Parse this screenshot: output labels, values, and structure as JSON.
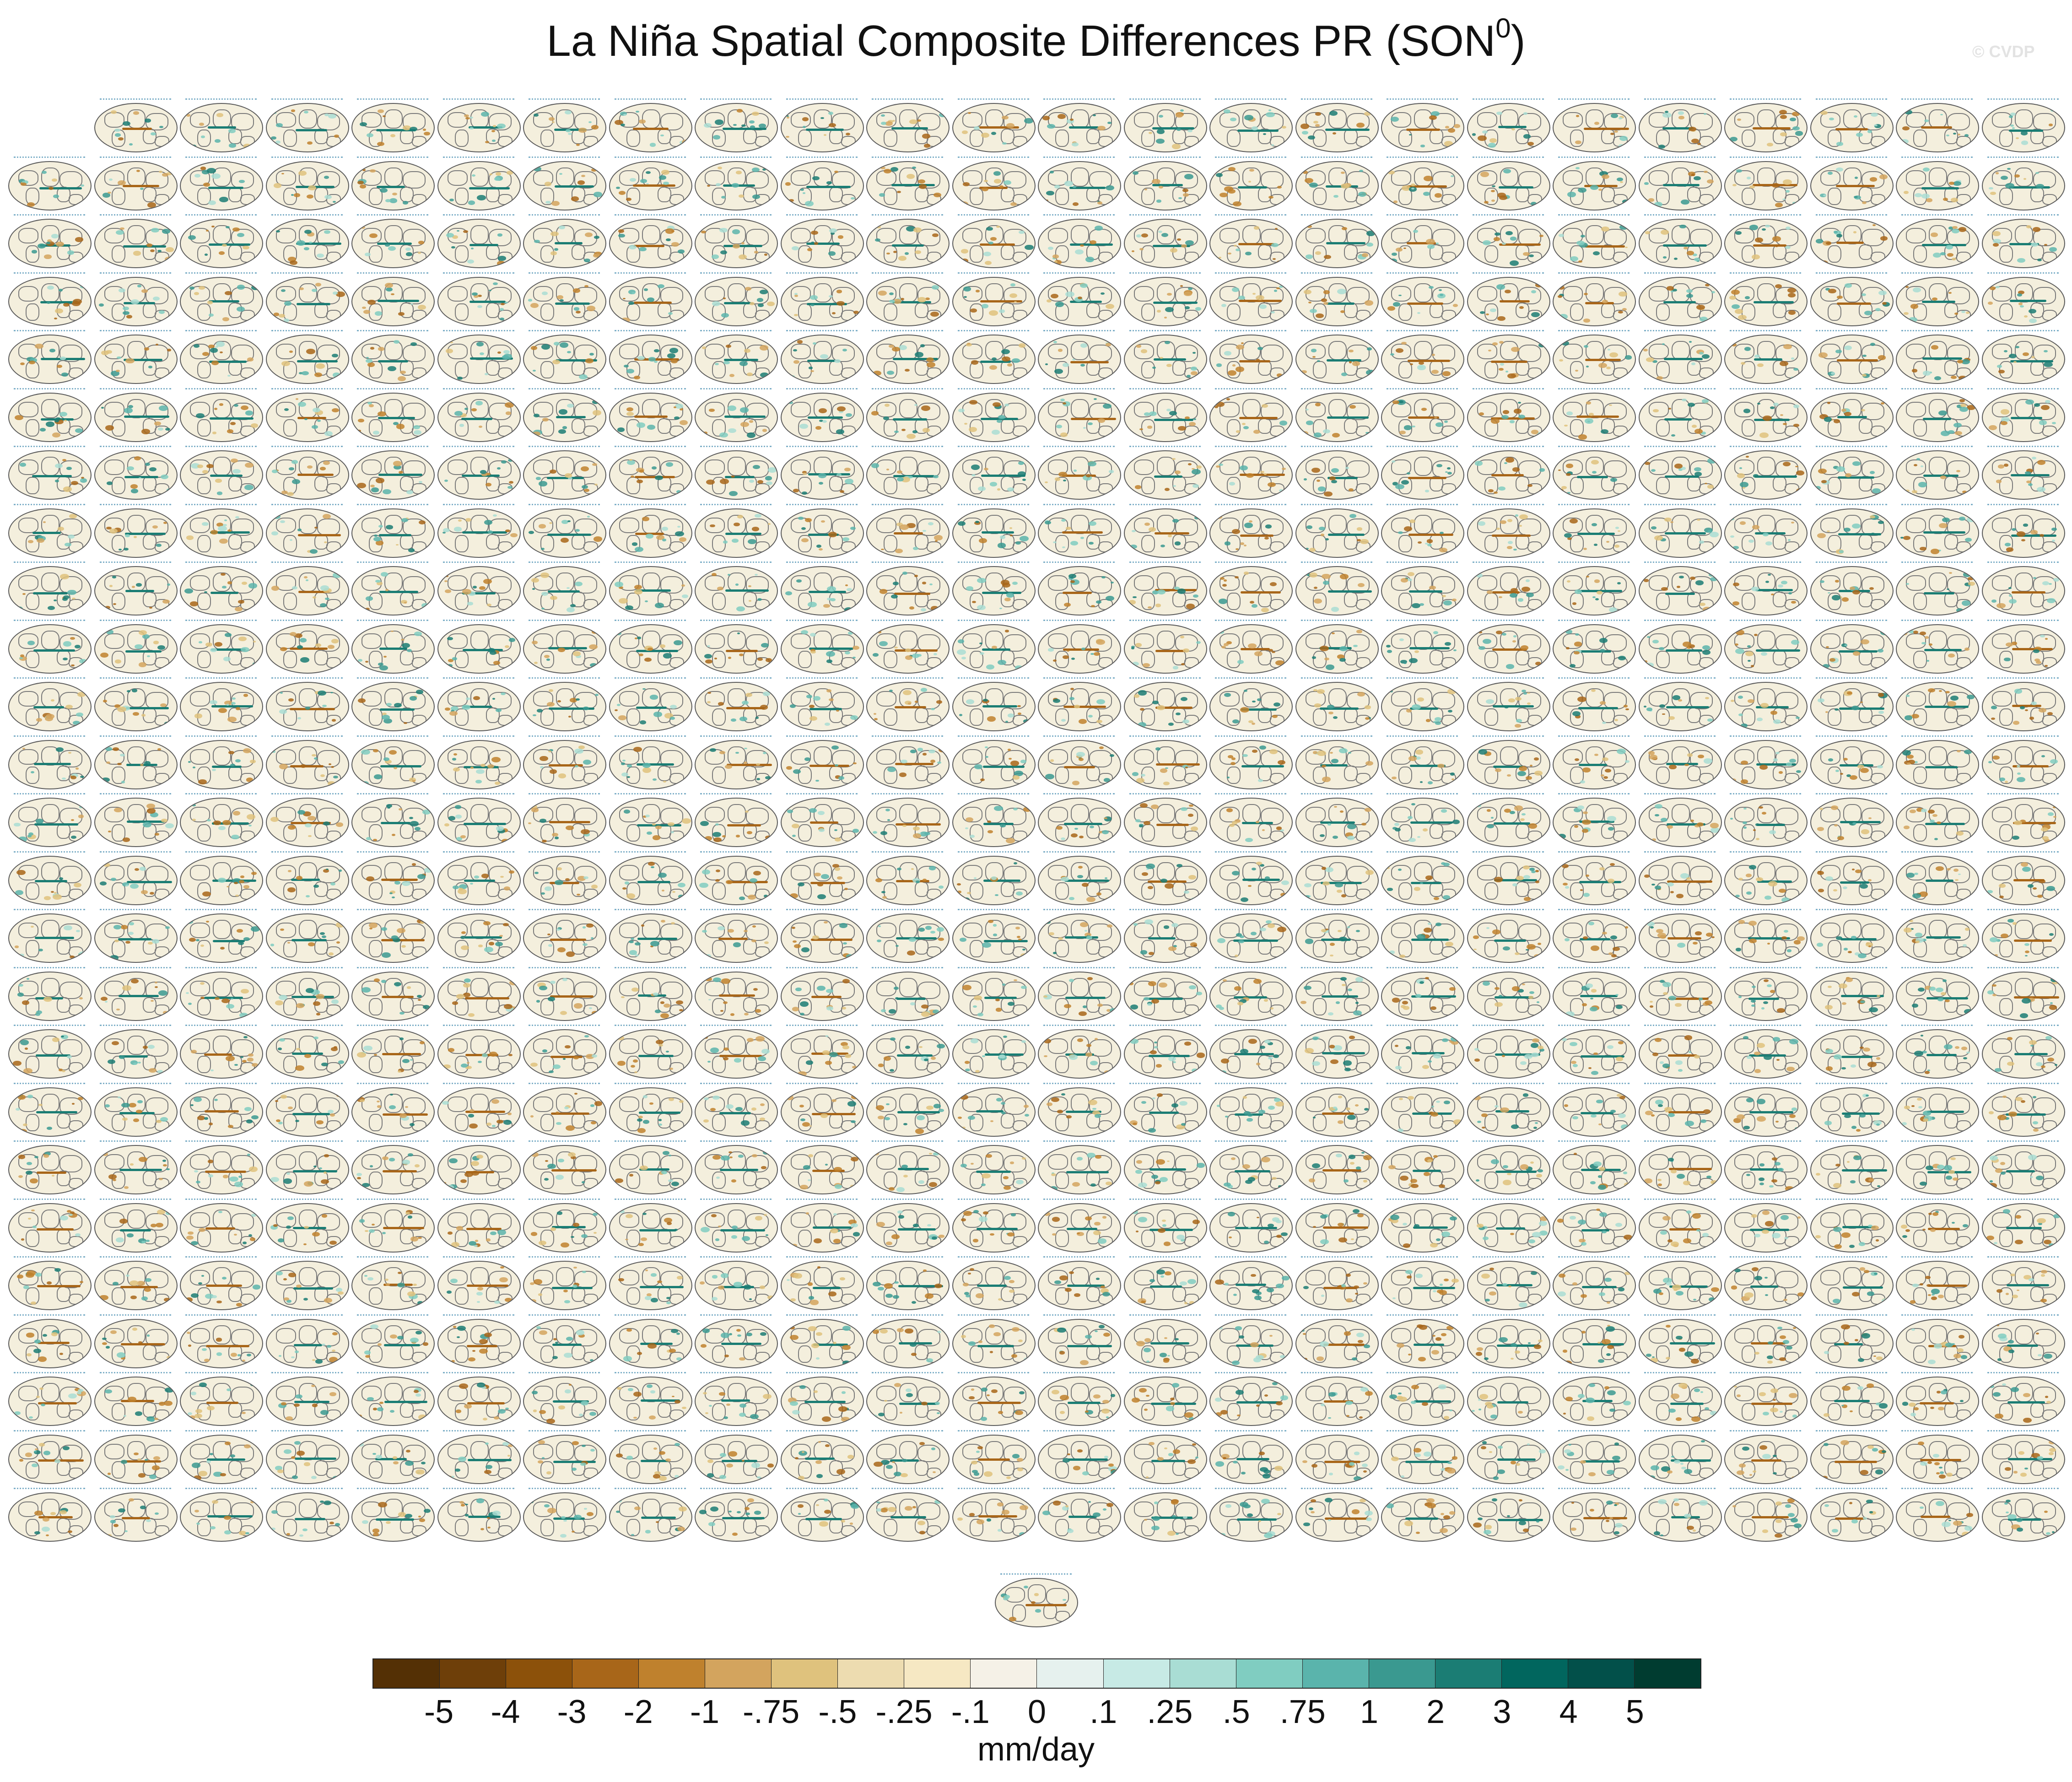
{
  "figure": {
    "title": "La Niña Spatial Composite Differences PR (SON",
    "title_superscript": "0",
    "title_end": ")",
    "watermark": "© CVDP",
    "panel_rows": [
      23,
      24,
      24,
      24,
      24,
      24,
      24,
      24,
      24,
      24,
      24,
      24,
      24,
      24,
      24,
      24,
      24,
      24,
      24,
      24,
      24,
      24,
      24,
      24,
      24,
      1
    ],
    "panel_count": 600
  },
  "colorbar": {
    "unit_label": "mm/day",
    "tick_labels": [
      "-5",
      "-4",
      "-3",
      "-2",
      "-1",
      "-.75",
      "-.5",
      "-.25",
      "-.1",
      "0",
      ".1",
      ".25",
      ".5",
      ".75",
      "1",
      "2",
      "3",
      "4",
      "5"
    ],
    "colors": [
      "#543005",
      "#6e3f09",
      "#8c510a",
      "#a86619",
      "#bf812d",
      "#d3a45e",
      "#dfc27d",
      "#eddcb0",
      "#f6e8c3",
      "#f5f1e7",
      "#e6f1ee",
      "#c7eae5",
      "#a9ddd4",
      "#80cdc1",
      "#5ab4ac",
      "#3a9990",
      "#1b7d74",
      "#01665e",
      "#02504a",
      "#003c30"
    ]
  }
}
